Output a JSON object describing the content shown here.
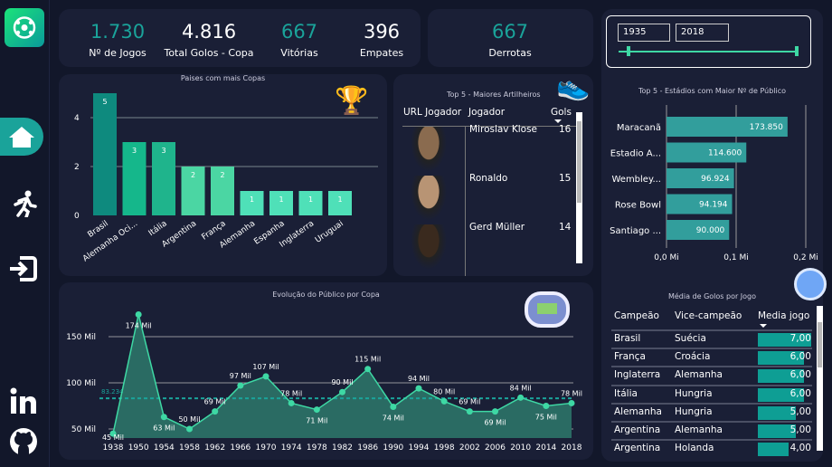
{
  "kpis": [
    {
      "value": "1.730",
      "label": "Nº de Jogos"
    },
    {
      "value": "4.816",
      "label": "Total Golos - Copa"
    },
    {
      "value": "667",
      "label": "Vitórias"
    },
    {
      "value": "396",
      "label": "Empates"
    },
    {
      "value": "667",
      "label": "Derrotas"
    }
  ],
  "slider": {
    "from": "1935",
    "to": "2018"
  },
  "top_scorers": {
    "title": "Top 5 - Maiores Artilheiros",
    "headers": [
      "URL Jogador",
      "Jogador",
      "Gols"
    ],
    "rows": [
      {
        "name": "Miroslav Klose",
        "goals": "16"
      },
      {
        "name": "Ronaldo",
        "goals": "15"
      },
      {
        "name": "Gerd Müller",
        "goals": "14"
      }
    ]
  },
  "avg_goals": {
    "title": "Média de Golos por Jogo",
    "headers": [
      "Campeão",
      "Vice-campeão",
      "Media jogo"
    ],
    "rows": [
      {
        "c": "Brasil",
        "v": "Suécia",
        "m": "7,00",
        "n": 7
      },
      {
        "c": "França",
        "v": "Croácia",
        "m": "6,00",
        "n": 6
      },
      {
        "c": "Inglaterra",
        "v": "Alemanha",
        "m": "6,00",
        "n": 6
      },
      {
        "c": "Itália",
        "v": "Hungria",
        "m": "6,00",
        "n": 6
      },
      {
        "c": "Alemanha",
        "v": "Hungria",
        "m": "5,00",
        "n": 5
      },
      {
        "c": "Argentina",
        "v": "Alemanha",
        "m": "5,00",
        "n": 5
      },
      {
        "c": "Argentina",
        "v": "Holanda",
        "m": "4,00",
        "n": 4
      }
    ]
  },
  "colors": {
    "teal": "#1aa39a",
    "panel": "#1a1f36",
    "line": "#3ed8a4"
  },
  "chart_data": [
    {
      "type": "bar",
      "title": "Paises com mais Copas",
      "categories": [
        "Brasil",
        "Alemanha Oci...",
        "Itália",
        "Argentina",
        "França",
        "Alemanha",
        "Espanha",
        "Inglaterra",
        "Uruguai"
      ],
      "values": [
        5,
        3,
        3,
        2,
        2,
        1,
        1,
        1,
        1
      ],
      "yticks": [
        "0",
        "2",
        "4"
      ],
      "ylim": [
        0,
        5
      ]
    },
    {
      "type": "bar",
      "orientation": "horizontal",
      "title": "Top 5 - Estádios com Maior Nº de Público",
      "categories": [
        "Maracanã",
        "Estadio A...",
        "Wembley...",
        "Rose Bowl",
        "Santiago ..."
      ],
      "values": [
        173850,
        114600,
        96924,
        94194,
        90000
      ],
      "labels": [
        "173.850",
        "114.600",
        "96.924",
        "94.194",
        "90.000"
      ],
      "xticks": [
        "0,0 Mi",
        "0,1 Mi",
        "0,2 Mi"
      ],
      "xlim": [
        0,
        200000
      ]
    },
    {
      "type": "area",
      "title": "Evolução do Público por Copa",
      "x": [
        "1938",
        "1950",
        "1954",
        "1958",
        "1962",
        "1966",
        "1970",
        "1974",
        "1978",
        "1982",
        "1986",
        "1990",
        "1994",
        "1998",
        "2002",
        "2006",
        "2010",
        "2014",
        "2018"
      ],
      "values": [
        45,
        174,
        63,
        50,
        69,
        97,
        107,
        78,
        71,
        90,
        115,
        74,
        94,
        80,
        69,
        69,
        84,
        75,
        78
      ],
      "labels": [
        "45 Mil",
        "174 Mil",
        "63 Mil",
        "50 Mil",
        "69 Mil",
        "97 Mil",
        "107 Mil",
        "78 Mil",
        "71 Mil",
        "90 Mil",
        "115 Mil",
        "74 Mil",
        "94 Mil",
        "80 Mil",
        "69 Mil",
        "69 Mil",
        "84 Mil",
        "75 Mil",
        "78 Mil"
      ],
      "average": 83.234,
      "average_label": "83.234",
      "yticks": [
        "50 Mil",
        "100 Mil",
        "150 Mil"
      ],
      "ylim": [
        40,
        180
      ]
    }
  ]
}
